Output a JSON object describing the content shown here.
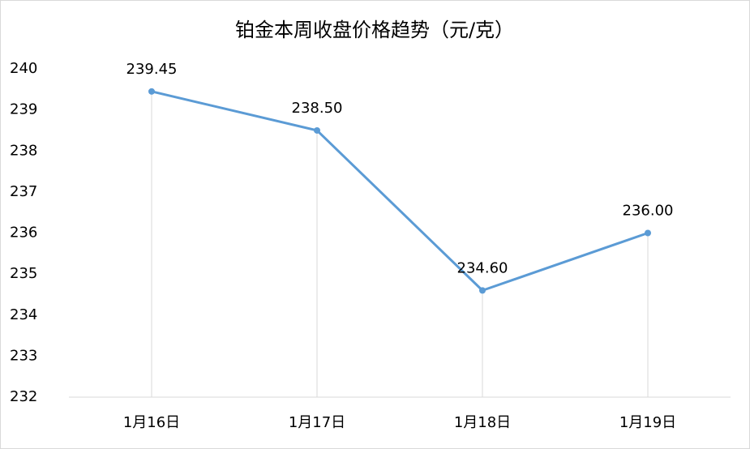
{
  "chart_data": {
    "type": "line",
    "title": "铂金本周收盘价格趋势（元/克）",
    "categories": [
      "1月16日",
      "1月17日",
      "1月18日",
      "1月19日"
    ],
    "series": [
      {
        "name": "收盘价格",
        "color": "#5b9bd5",
        "values": [
          239.45,
          238.5,
          234.6,
          236.0
        ],
        "value_labels": [
          "239.45",
          "238.50",
          "234.60",
          "236.00"
        ]
      }
    ],
    "ylim": [
      232,
      240
    ],
    "yticks": [
      232,
      233,
      234,
      235,
      236,
      237,
      238,
      239,
      240
    ],
    "drop_lines": true,
    "legend": false
  }
}
